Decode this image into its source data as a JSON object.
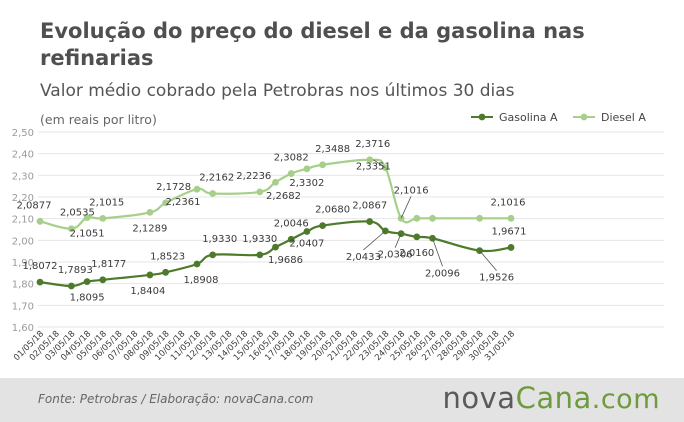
{
  "header": {
    "title": "Evolução do preço do diesel e da gasolina nas refinarias",
    "subtitle": "Valor médio cobrado pela Petrobras nos últimos 30 dias",
    "unit": "(em reais por litro)"
  },
  "footer": {
    "source": "Fonte:  Petrobras  / Elaboração:  novaCana.com",
    "brand_part1": "nova",
    "brand_part2": "Cana",
    "brand_part3": ".com"
  },
  "colors": {
    "gasolina": "#4e7a2c",
    "diesel": "#a6d08a",
    "grid": "#e6e6e6",
    "axis_text": "#9a9a9a",
    "label_text": "#3a3a3a",
    "leader": "#555555"
  },
  "chart_data": {
    "type": "line",
    "ylim": [
      1.6,
      2.5
    ],
    "yticks": [
      "1,60",
      "1,70",
      "1,80",
      "1,90",
      "2,00",
      "2,10",
      "2,20",
      "2,30",
      "2,40",
      "2,50"
    ],
    "ytick_values": [
      1.6,
      1.7,
      1.8,
      1.9,
      2.0,
      2.1,
      2.2,
      2.3,
      2.4,
      2.5
    ],
    "grid": true,
    "legend_position": "top-right",
    "categories": [
      "01/05/18",
      "02/05/18",
      "03/05/18",
      "04/05/18",
      "05/05/18",
      "06/05/18",
      "07/05/18",
      "08/05/18",
      "09/05/18",
      "10/05/18",
      "11/05/18",
      "12/05/18",
      "13/05/18",
      "14/05/18",
      "15/05/18",
      "16/05/18",
      "17/05/18",
      "18/05/18",
      "19/05/18",
      "20/05/18",
      "21/05/18",
      "22/05/18",
      "23/05/18",
      "24/05/18",
      "25/05/18",
      "26/05/18",
      "27/05/18",
      "28/05/18",
      "29/05/18",
      "30/05/18",
      "31/05/18"
    ],
    "series": [
      {
        "name": "Gasolina A",
        "points": [
          {
            "x": "01/05/18",
            "y": 1.8072,
            "label": "1,8072"
          },
          {
            "x": "03/05/18",
            "y": 1.7893,
            "label": "1,7893"
          },
          {
            "x": "04/05/18",
            "y": 1.8095,
            "label": "1,8095"
          },
          {
            "x": "05/05/18",
            "y": 1.8177,
            "label": "1,8177"
          },
          {
            "x": "08/05/18",
            "y": 1.8404,
            "label": "1,8404"
          },
          {
            "x": "09/05/18",
            "y": 1.8523,
            "label": "1,8523"
          },
          {
            "x": "11/05/18",
            "y": 1.8908,
            "label": "1,8908"
          },
          {
            "x": "12/05/18",
            "y": 1.933,
            "label": "1,9330"
          },
          {
            "x": "15/05/18",
            "y": 1.933,
            "label": "1,9330"
          },
          {
            "x": "16/05/18",
            "y": 1.9686,
            "label": "1,9686"
          },
          {
            "x": "17/05/18",
            "y": 2.0046,
            "label": "2,0046"
          },
          {
            "x": "18/05/18",
            "y": 2.0407,
            "label": "2,0407"
          },
          {
            "x": "19/05/18",
            "y": 2.068,
            "label": "2,0680"
          },
          {
            "x": "22/05/18",
            "y": 2.0867,
            "label": "2,0867"
          },
          {
            "x": "23/05/18",
            "y": 2.0433,
            "label": "2,0433"
          },
          {
            "x": "24/05/18",
            "y": 2.0306,
            "label": "2,0306"
          },
          {
            "x": "25/05/18",
            "y": 2.016,
            "label": "2,0160"
          },
          {
            "x": "26/05/18",
            "y": 2.0096,
            "label": "2,0096"
          },
          {
            "x": "29/05/18",
            "y": 1.9526,
            "label": "1,9526"
          },
          {
            "x": "31/05/18",
            "y": 1.9671,
            "label": "1,9671"
          }
        ]
      },
      {
        "name": "Diesel A",
        "points": [
          {
            "x": "01/05/18",
            "y": 2.0877,
            "label": "2,0877"
          },
          {
            "x": "03/05/18",
            "y": 2.0535,
            "label": "2,0535"
          },
          {
            "x": "04/05/18",
            "y": 2.1051,
            "label": "2,1051"
          },
          {
            "x": "05/05/18",
            "y": 2.1015,
            "label": "2,1015"
          },
          {
            "x": "08/05/18",
            "y": 2.1289,
            "label": "2,1289"
          },
          {
            "x": "09/05/18",
            "y": 2.1728,
            "label": "2,1728"
          },
          {
            "x": "11/05/18",
            "y": 2.2361,
            "label": "2,2361"
          },
          {
            "x": "12/05/18",
            "y": 2.2162,
            "label": "2,2162"
          },
          {
            "x": "15/05/18",
            "y": 2.2236,
            "label": "2,2236"
          },
          {
            "x": "16/05/18",
            "y": 2.2682,
            "label": "2,2682"
          },
          {
            "x": "17/05/18",
            "y": 2.3082,
            "label": "2,3082"
          },
          {
            "x": "18/05/18",
            "y": 2.3302,
            "label": "2,3302"
          },
          {
            "x": "19/05/18",
            "y": 2.3488,
            "label": "2,3488"
          },
          {
            "x": "22/05/18",
            "y": 2.3716,
            "label": "2,3716"
          },
          {
            "x": "23/05/18",
            "y": 2.3351,
            "label": "2,3351"
          },
          {
            "x": "24/05/18",
            "y": 2.1016,
            "label": "2,1016"
          },
          {
            "x": "25/05/18",
            "y": 2.1016
          },
          {
            "x": "26/05/18",
            "y": 2.1016
          },
          {
            "x": "29/05/18",
            "y": 2.1016
          },
          {
            "x": "31/05/18",
            "y": 2.1016,
            "label": "2,1016"
          }
        ]
      }
    ]
  }
}
